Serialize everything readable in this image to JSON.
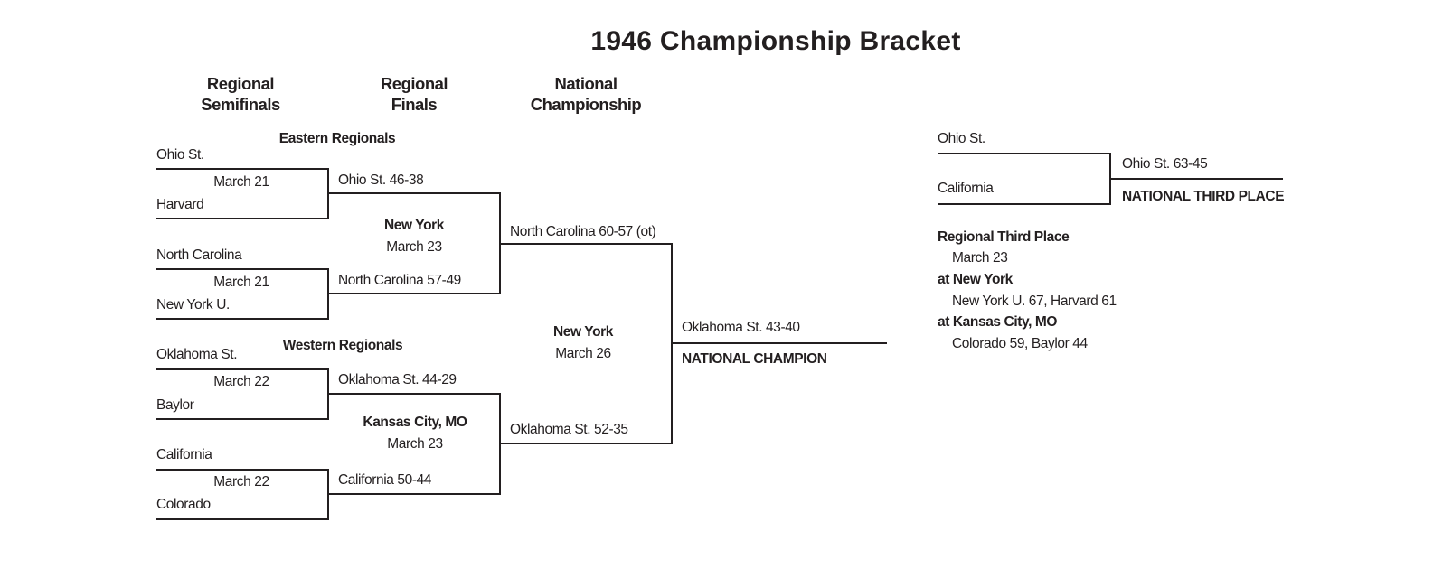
{
  "title": "1946 Championship Bracket",
  "rounds": {
    "regional_semifinals": [
      "Regional",
      "Semifinals"
    ],
    "regional_finals": [
      "Regional",
      "Finals"
    ],
    "national_championship": [
      "National",
      "Championship"
    ]
  },
  "eastern": {
    "label": "Eastern Regionals",
    "semis": [
      {
        "team1": "Ohio St.",
        "date": "March 21",
        "team2": "Harvard",
        "result": "Ohio St. 46-38"
      },
      {
        "team1": "North Carolina",
        "date": "March 21",
        "team2": "New York U.",
        "result": "North Carolina 57-49"
      }
    ],
    "final": {
      "site": "New York",
      "date": "March 23",
      "result": "North Carolina 60-57 (ot)"
    }
  },
  "western": {
    "label": "Western Regionals",
    "semis": [
      {
        "team1": "Oklahoma St.",
        "date": "March 22",
        "team2": "Baylor",
        "result": "Oklahoma St. 44-29"
      },
      {
        "team1": "California",
        "date": "March 22",
        "team2": "Colorado",
        "result": "California 50-44"
      }
    ],
    "final": {
      "site": "Kansas City, MO",
      "date": "March 23",
      "result": "Oklahoma St. 52-35"
    }
  },
  "championship": {
    "site": "New York",
    "date": "March 26",
    "result": "Oklahoma St. 43-40",
    "label": "NATIONAL CHAMPION"
  },
  "third_place": {
    "team1": "Ohio St.",
    "team2": "California",
    "result": "Ohio St. 63-45",
    "label": "NATIONAL THIRD PLACE"
  },
  "regional_third": {
    "heading": "Regional Third Place",
    "date": "March 23",
    "sites": [
      {
        "site": "at New York",
        "result": "New York U. 67, Harvard 61"
      },
      {
        "site": "at Kansas City, MO",
        "result": "Colorado 59, Baylor 44"
      }
    ]
  }
}
